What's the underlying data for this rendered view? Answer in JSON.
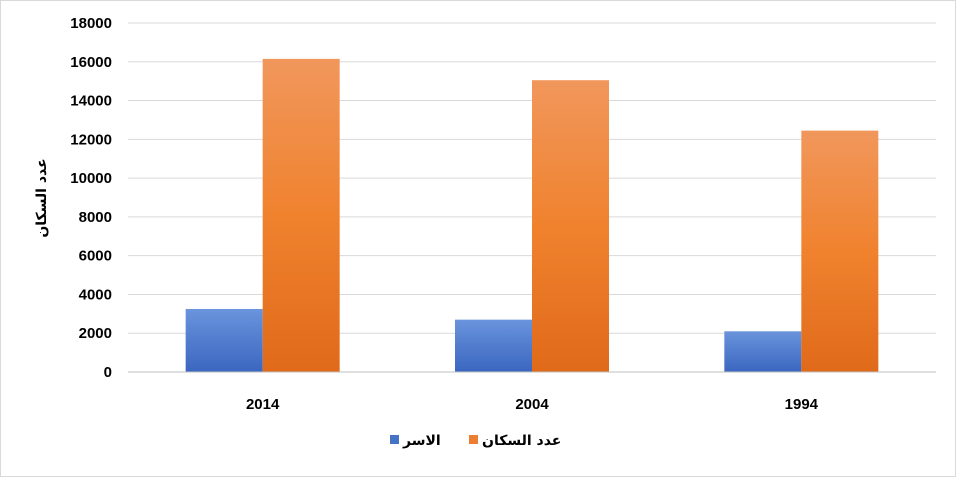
{
  "chart_data": {
    "type": "bar",
    "categories": [
      "2014",
      "2004",
      "1994"
    ],
    "series": [
      {
        "name": "الاسر",
        "values": [
          3250,
          2700,
          2100
        ],
        "color": "#4472c4"
      },
      {
        "name": "عدد السكان",
        "values": [
          16150,
          15050,
          12450
        ],
        "color": "#ed7d31"
      }
    ],
    "title": "",
    "xlabel": "",
    "ylabel": "عدد السكان",
    "ylim": [
      0,
      18000
    ],
    "yticks": [
      "0",
      "2000",
      "4000",
      "6000",
      "8000",
      "10000",
      "12000",
      "14000",
      "16000",
      "18000"
    ],
    "grid": true,
    "legend_position": "bottom"
  }
}
